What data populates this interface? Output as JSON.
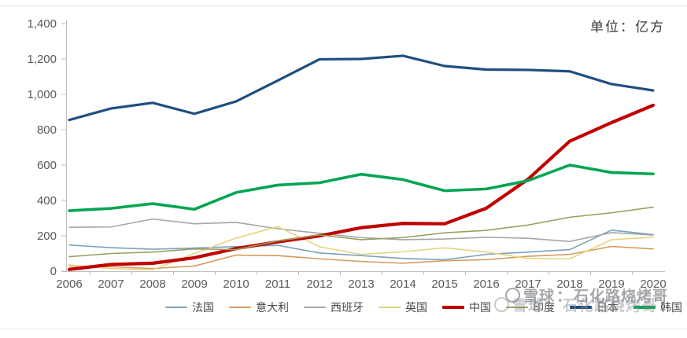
{
  "header": {
    "unit_label": "单位：亿方"
  },
  "watermark": {
    "logo": "xueqiu-circle-logo",
    "source": "雪球",
    "separator": "：",
    "author": "石化路烧烤哥"
  },
  "chart_data": {
    "type": "line",
    "title": "",
    "unit": "亿方",
    "x": [
      2006,
      2007,
      2008,
      2009,
      2010,
      2011,
      2012,
      2013,
      2014,
      2015,
      2016,
      2017,
      2018,
      2019,
      2020
    ],
    "x_tick_labels": [
      "2006",
      "2007",
      "2008",
      "2009",
      "2010",
      "2011",
      "2012",
      "2013",
      "2014",
      "2015",
      "2016",
      "2017",
      "2018",
      "2019",
      "2020"
    ],
    "ylim": [
      0,
      1400
    ],
    "y_ticks": [
      0,
      200,
      400,
      600,
      800,
      1000,
      1200,
      1400
    ],
    "y_tick_labels": [
      "0",
      "200",
      "400",
      "600",
      "800",
      "1,000",
      "1,200",
      "1,400"
    ],
    "grid": false,
    "legend_position": "bottom",
    "axis_color": "#bfbfbf",
    "tick_label_color": "#595959",
    "series": [
      {
        "name": "法国",
        "color": "#7ba1bd",
        "width": 1.6,
        "values": [
          148,
          133,
          124,
          131,
          139,
          146,
          103,
          88,
          72,
          65,
          95,
          108,
          122,
          232,
          207
        ]
      },
      {
        "name": "意大利",
        "color": "#d69a5d",
        "width": 1.6,
        "values": [
          30,
          25,
          15,
          29,
          91,
          88,
          70,
          55,
          45,
          59,
          65,
          84,
          95,
          140,
          126
        ]
      },
      {
        "name": "西班牙",
        "color": "#a6a6a6",
        "width": 1.6,
        "values": [
          248,
          250,
          295,
          268,
          276,
          240,
          214,
          190,
          178,
          182,
          192,
          186,
          168,
          218,
          204
        ]
      },
      {
        "name": "英国",
        "color": "#e5d47e",
        "width": 1.6,
        "values": [
          35,
          15,
          8,
          100,
          187,
          252,
          138,
          95,
          110,
          132,
          108,
          72,
          70,
          178,
          192
        ]
      },
      {
        "name": "中国",
        "color": "#c00000",
        "width": 4.2,
        "values": [
          10,
          38,
          45,
          76,
          128,
          166,
          200,
          246,
          270,
          268,
          356,
          520,
          735,
          840,
          938
        ]
      },
      {
        "name": "印度",
        "color": "#9aa05f",
        "width": 1.6,
        "values": [
          82,
          100,
          108,
          126,
          122,
          171,
          205,
          178,
          190,
          217,
          231,
          261,
          305,
          330,
          362
        ]
      },
      {
        "name": "日本",
        "color": "#1f4e80",
        "width": 3.2,
        "values": [
          855,
          920,
          952,
          890,
          960,
          1078,
          1198,
          1200,
          1218,
          1160,
          1140,
          1138,
          1130,
          1058,
          1022
        ]
      },
      {
        "name": "韩国",
        "color": "#00a551",
        "width": 3.6,
        "values": [
          342,
          355,
          382,
          350,
          445,
          487,
          500,
          548,
          518,
          455,
          465,
          512,
          600,
          558,
          550
        ]
      }
    ]
  }
}
